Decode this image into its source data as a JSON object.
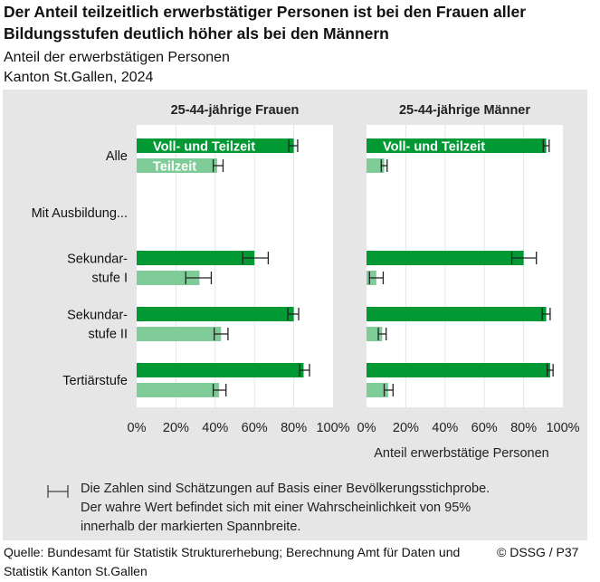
{
  "title": "Der Anteil teilzeitlich erwerbstätiger Personen ist bei den Frauen aller Bildungsstufen deutlich höher als bei den Männern",
  "subtitle1": "Anteil der erwerbstätigen Personen",
  "subtitle2": "Kanton St.Gallen, 2024",
  "source": "Quelle: Bundesamt für Statistik Strukturerhebung; Berechnung Amt für Daten und Statistik Kanton St.Gallen",
  "copyright": "© DSSG / P37",
  "legend_note": [
    "Die Zahlen sind Schätzungen auf Basis einer Bevölkerungsstichprobe.",
    "Der wahre Wert befindet sich mit einer Wahrscheinlichkeit von 95%",
    "innerhalb der markierten Spannbreite."
  ],
  "colors": {
    "voll_und_teilzeit": "#009933",
    "teilzeit": "#80cc99",
    "panel_bg": "#e6e6e6"
  },
  "chart_data": {
    "type": "bar",
    "orientation": "horizontal",
    "xlabel": "Anteil erwerbstätige Personen",
    "xlim": [
      0,
      100
    ],
    "xticks": [
      "0%",
      "20%",
      "40%",
      "60%",
      "80%",
      "100%"
    ],
    "grid": true,
    "categories": [
      "Alle",
      "Mit Ausbildung...",
      "Sekundar-\nstufe I",
      "Sekundar-\nstufe II",
      "Tertiärstufe"
    ],
    "series_labels": [
      "Voll- und Teilzeit",
      "Teilzeit"
    ],
    "panels": [
      {
        "name": "25-44-jährige Frauen",
        "series": [
          {
            "name": "Voll- und Teilzeit",
            "values": [
              80,
              null,
              60,
              80,
              85
            ],
            "ci": [
              [
                77.5,
                82
              ],
              null,
              [
                54,
                67
              ],
              [
                77,
                82.5
              ],
              [
                83,
                88
              ]
            ]
          },
          {
            "name": "Teilzeit",
            "values": [
              41,
              null,
              32,
              43,
              42
            ],
            "ci": [
              [
                39,
                44
              ],
              null,
              [
                25,
                38
              ],
              [
                39.5,
                46.5
              ],
              [
                39,
                45.5
              ]
            ]
          }
        ]
      },
      {
        "name": "25-44-jährige Männer",
        "series": [
          {
            "name": "Voll- und Teilzeit",
            "values": [
              91.5,
              null,
              80,
              91.5,
              93.5
            ],
            "ci": [
              [
                90,
                93
              ],
              null,
              [
                74,
                86.5
              ],
              [
                89.5,
                93.5
              ],
              [
                92,
                95
              ]
            ]
          },
          {
            "name": "Teilzeit",
            "values": [
              9,
              null,
              5,
              8,
              11
            ],
            "ci": [
              [
                7.5,
                10.5
              ],
              null,
              [
                1.5,
                8.5
              ],
              [
                6,
                10
              ],
              [
                9,
                13.5
              ]
            ]
          }
        ]
      }
    ]
  }
}
